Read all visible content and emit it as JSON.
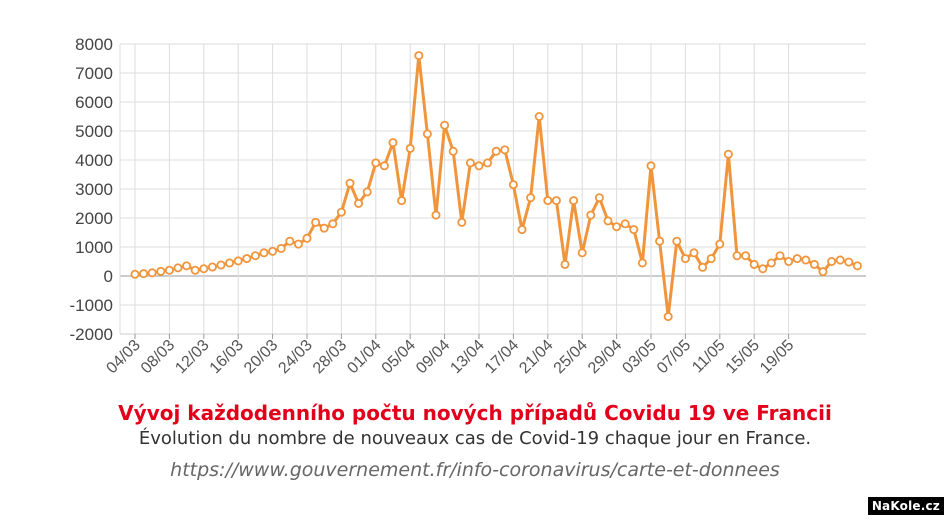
{
  "chart_data": {
    "type": "line",
    "ylim": [
      -2000,
      8000
    ],
    "yticks": [
      "8000",
      "7000",
      "6000",
      "5000",
      "4000",
      "3000",
      "2000",
      "1000",
      "0",
      "-1000",
      "-2000"
    ],
    "xtick_labels": [
      "04/03",
      "08/03",
      "12/03",
      "16/03",
      "20/03",
      "24/03",
      "28/03",
      "01/04",
      "05/04",
      "09/04",
      "13/04",
      "17/04",
      "21/04",
      "25/04",
      "29/04",
      "03/05",
      "07/05",
      "11/05",
      "15/05",
      "19/05"
    ],
    "series": [
      {
        "color": "#f0953c",
        "values": [
          60,
          80,
          110,
          160,
          200,
          280,
          350,
          200,
          250,
          310,
          380,
          450,
          520,
          600,
          700,
          800,
          850,
          950,
          1200,
          1100,
          1300,
          1850,
          1650,
          1800,
          2200,
          3200,
          2500,
          2900,
          3900,
          3800,
          4600,
          2600,
          4400,
          7600,
          4900,
          2100,
          5200,
          4300,
          1850,
          3900,
          3800,
          3900,
          4300,
          4350,
          3150,
          1600,
          2700,
          5500,
          2600,
          2600,
          400,
          2600,
          800,
          2100,
          2700,
          1900,
          1700,
          1800,
          1600,
          450,
          3800,
          1200,
          -1400,
          1200,
          600,
          800,
          300,
          600,
          1100,
          4200,
          700,
          700,
          400,
          250,
          450,
          700,
          500,
          600,
          550,
          400,
          150,
          500,
          550,
          480,
          350
        ]
      }
    ]
  },
  "captions": {
    "czech_title": "Vývoj každodenního počtu nových případů Covidu 19 ve Francii",
    "french_subtitle": "Évolution du nombre de nouveaux cas de Covid-19 chaque jour en France.",
    "source_url": "https://www.gouvernement.fr/info-coronavirus/carte-et-donnees"
  },
  "watermark": "NaKole.cz"
}
